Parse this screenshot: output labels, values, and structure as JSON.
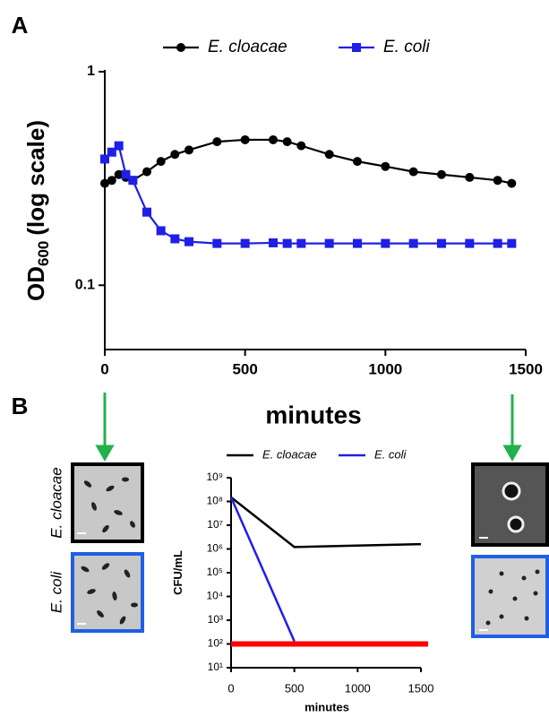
{
  "chart_data": [
    {
      "type": "line",
      "panel_label": "A",
      "log_y": true,
      "x_label": "minutes",
      "y_label": "OD",
      "y_label_sub": "600",
      "y_label_suffix": "(log scale)",
      "x": [
        0,
        25,
        50,
        75,
        100,
        150,
        200,
        250,
        300,
        400,
        500,
        600,
        650,
        700,
        800,
        900,
        1000,
        1100,
        1200,
        1300,
        1400,
        1450
      ],
      "series": [
        {
          "name": "E. cloacae",
          "color": "#000000",
          "marker": "circle",
          "values": [
            0.3,
            0.31,
            0.33,
            0.32,
            0.31,
            0.34,
            0.38,
            0.41,
            0.43,
            0.47,
            0.48,
            0.48,
            0.47,
            0.45,
            0.41,
            0.38,
            0.36,
            0.34,
            0.33,
            0.32,
            0.31,
            0.3
          ]
        },
        {
          "name": "E. coli",
          "color": "#1f1fe6",
          "marker": "square",
          "values": [
            0.39,
            0.42,
            0.45,
            0.33,
            0.31,
            0.22,
            0.18,
            0.165,
            0.16,
            0.157,
            0.157,
            0.158,
            0.157,
            0.157,
            0.157,
            0.157,
            0.157,
            0.157,
            0.157,
            0.157,
            0.157,
            0.157
          ]
        }
      ],
      "xlim": [
        0,
        1500
      ],
      "xticks": [
        0,
        500,
        1000,
        1500
      ],
      "ylim": [
        0.05,
        1
      ],
      "yticks": [
        0.1,
        1
      ]
    },
    {
      "type": "line",
      "panel_label": "B",
      "log_y": true,
      "x_label": "minutes",
      "y_label": "CFU/mL",
      "x": [
        0,
        500,
        1500
      ],
      "series": [
        {
          "name": "E. cloacae",
          "color": "#000000",
          "values": [
            150000000,
            1200000,
            1600000
          ]
        },
        {
          "name": "E. coli",
          "color": "#1f1fe6",
          "values": [
            150000000,
            130,
            null
          ]
        }
      ],
      "limit_line": {
        "value": 100,
        "color": "#ff0000"
      },
      "xlim": [
        0,
        1500
      ],
      "xticks": [
        0,
        500,
        1000,
        1500
      ],
      "ylim": [
        10,
        1000000000
      ],
      "yticks": [
        {
          "value": 10,
          "label": "10¹"
        },
        {
          "value": 100,
          "label": "10²"
        },
        {
          "value": 1000,
          "label": "10³"
        },
        {
          "value": 10000,
          "label": "10⁴"
        },
        {
          "value": 100000,
          "label": "10⁵"
        },
        {
          "value": 1000000,
          "label": "10⁶"
        },
        {
          "value": 10000000,
          "label": "10⁷"
        },
        {
          "value": 100000000,
          "label": "10⁸"
        },
        {
          "value": 1000000000,
          "label": "10⁹"
        }
      ]
    }
  ],
  "figure": {
    "micrograph_labels": [
      "E. cloacae",
      "E. coli"
    ]
  }
}
